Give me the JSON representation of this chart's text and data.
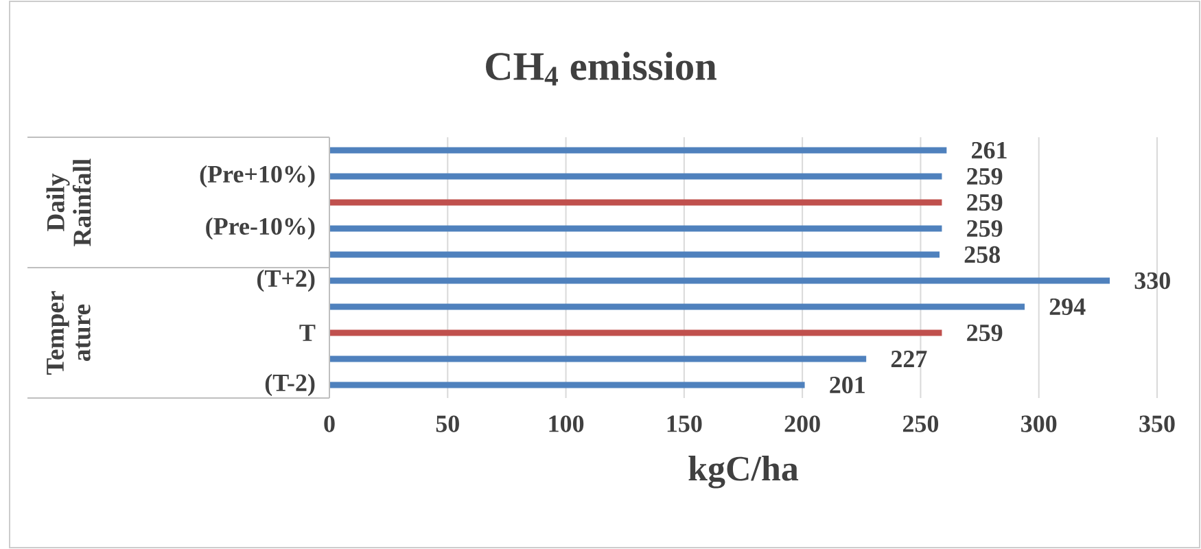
{
  "chart_data": {
    "type": "bar",
    "orientation": "horizontal",
    "title": "CH$_{4}$ emission",
    "xlabel": "kgC/ha",
    "categories": [
      null,
      "(Pre+10%)",
      null,
      "(Pre-10%)",
      null,
      "(T+2)",
      null,
      "T",
      null,
      "(T-2)"
    ],
    "values": [
      261,
      259,
      259,
      259,
      258,
      330,
      294,
      259,
      227,
      201
    ],
    "colors": [
      "#4f81bd",
      "#4f81bd",
      "#c0504d",
      "#4f81bd",
      "#4f81bd",
      "#4f81bd",
      "#4f81bd",
      "#c0504d",
      "#4f81bd",
      "#4f81bd"
    ],
    "xlim": [
      0,
      350
    ],
    "xticks": [
      0,
      50,
      100,
      150,
      200,
      250,
      300,
      350
    ],
    "grid": "x",
    "data_labels": true,
    "annotations": [
      "Daily Rainfall",
      "Temper ature"
    ]
  }
}
